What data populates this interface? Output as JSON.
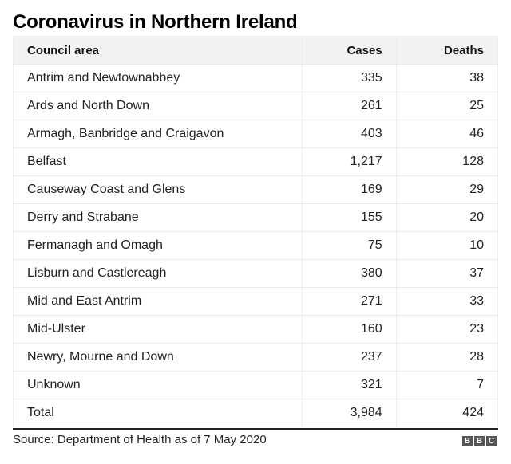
{
  "title": "Coronavirus in Northern Ireland",
  "table": {
    "headers": [
      "Council area",
      "Cases",
      "Deaths"
    ],
    "rows": [
      [
        "Antrim and Newtownabbey",
        "335",
        "38"
      ],
      [
        "Ards and North Down",
        "261",
        "25"
      ],
      [
        "Armagh, Banbridge and Craigavon",
        "403",
        "46"
      ],
      [
        "Belfast",
        "1,217",
        "128"
      ],
      [
        "Causeway Coast and Glens",
        "169",
        "29"
      ],
      [
        "Derry and Strabane",
        "155",
        "20"
      ],
      [
        "Fermanagh and Omagh",
        "75",
        "10"
      ],
      [
        "Lisburn and Castlereagh",
        "380",
        "37"
      ],
      [
        "Mid and East Antrim",
        "271",
        "33"
      ],
      [
        "Mid-Ulster",
        "160",
        "23"
      ],
      [
        "Newry, Mourne and Down",
        "237",
        "28"
      ],
      [
        "Unknown",
        "321",
        "7"
      ],
      [
        "Total",
        "3,984",
        "424"
      ]
    ]
  },
  "source": "Source: Department of Health as of 7 May 2020",
  "logo": [
    "B",
    "B",
    "C"
  ],
  "colors": {
    "header_bg": "#f2f2f2",
    "border": "#ececec",
    "logo_bg": "#555555"
  },
  "chart_data": {
    "type": "table",
    "title": "Coronavirus in Northern Ireland",
    "columns": [
      "Council area",
      "Cases",
      "Deaths"
    ],
    "categories": [
      "Antrim and Newtownabbey",
      "Ards and North Down",
      "Armagh, Banbridge and Craigavon",
      "Belfast",
      "Causeway Coast and Glens",
      "Derry and Strabane",
      "Fermanagh and Omagh",
      "Lisburn and Castlereagh",
      "Mid and East Antrim",
      "Mid-Ulster",
      "Newry, Mourne and Down",
      "Unknown",
      "Total"
    ],
    "series": [
      {
        "name": "Cases",
        "values": [
          335,
          261,
          403,
          1217,
          169,
          155,
          75,
          380,
          271,
          160,
          237,
          321,
          3984
        ]
      },
      {
        "name": "Deaths",
        "values": [
          38,
          25,
          46,
          128,
          29,
          20,
          10,
          37,
          33,
          23,
          28,
          7,
          424
        ]
      }
    ],
    "source": "Department of Health as of 7 May 2020"
  }
}
